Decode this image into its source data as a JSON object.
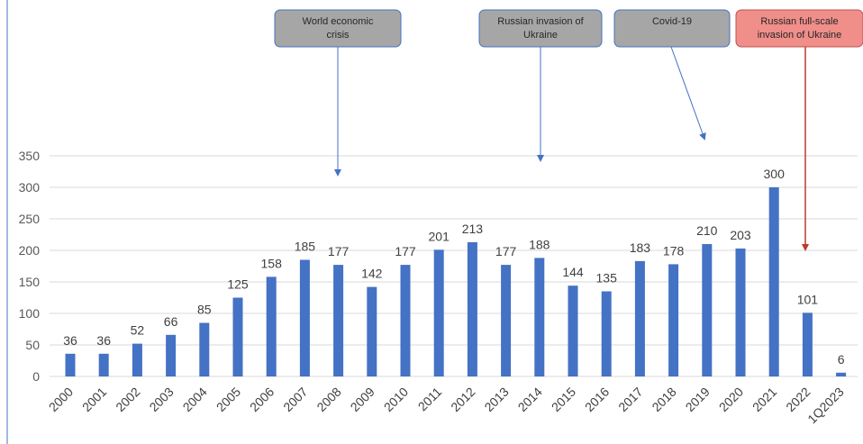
{
  "chart_data": {
    "type": "bar",
    "categories": [
      "2000",
      "2001",
      "2002",
      "2003",
      "2004",
      "2005",
      "2006",
      "2007",
      "2008",
      "2009",
      "2010",
      "2011",
      "2012",
      "2013",
      "2014",
      "2015",
      "2016",
      "2017",
      "2018",
      "2019",
      "2020",
      "2021",
      "2022",
      "1Q2023"
    ],
    "values": [
      36,
      36,
      52,
      66,
      85,
      125,
      158,
      185,
      177,
      142,
      177,
      201,
      213,
      177,
      188,
      144,
      135,
      183,
      178,
      210,
      203,
      300,
      101,
      6
    ],
    "ylim": [
      0,
      350
    ],
    "yticks": [
      "0",
      "50",
      "100",
      "150",
      "200",
      "250",
      "300",
      "350"
    ],
    "grid": true,
    "bar_color": "#4472c4",
    "annotations": [
      {
        "text": "World economic crisis",
        "lines": [
          "World economic",
          "crisis"
        ],
        "target": "2008",
        "box_color": "#a6a6a6",
        "arrow_color": "#4472c4"
      },
      {
        "text": "Russian invasion of Ukraine",
        "lines": [
          "Russian invasion of",
          "Ukraine"
        ],
        "target": "2014",
        "box_color": "#a6a6a6",
        "arrow_color": "#4472c4"
      },
      {
        "text": "Covid-19",
        "lines": [
          "Covid-19"
        ],
        "target": "2019",
        "box_color": "#a6a6a6",
        "arrow_color": "#4472c4"
      },
      {
        "text": "Russian full-scale invasion of Ukraine",
        "lines": [
          "Russian full-scale",
          "invasion of Ukraine"
        ],
        "target": "2022",
        "box_color": "#f08e8a",
        "arrow_color": "#c0392b"
      }
    ]
  }
}
